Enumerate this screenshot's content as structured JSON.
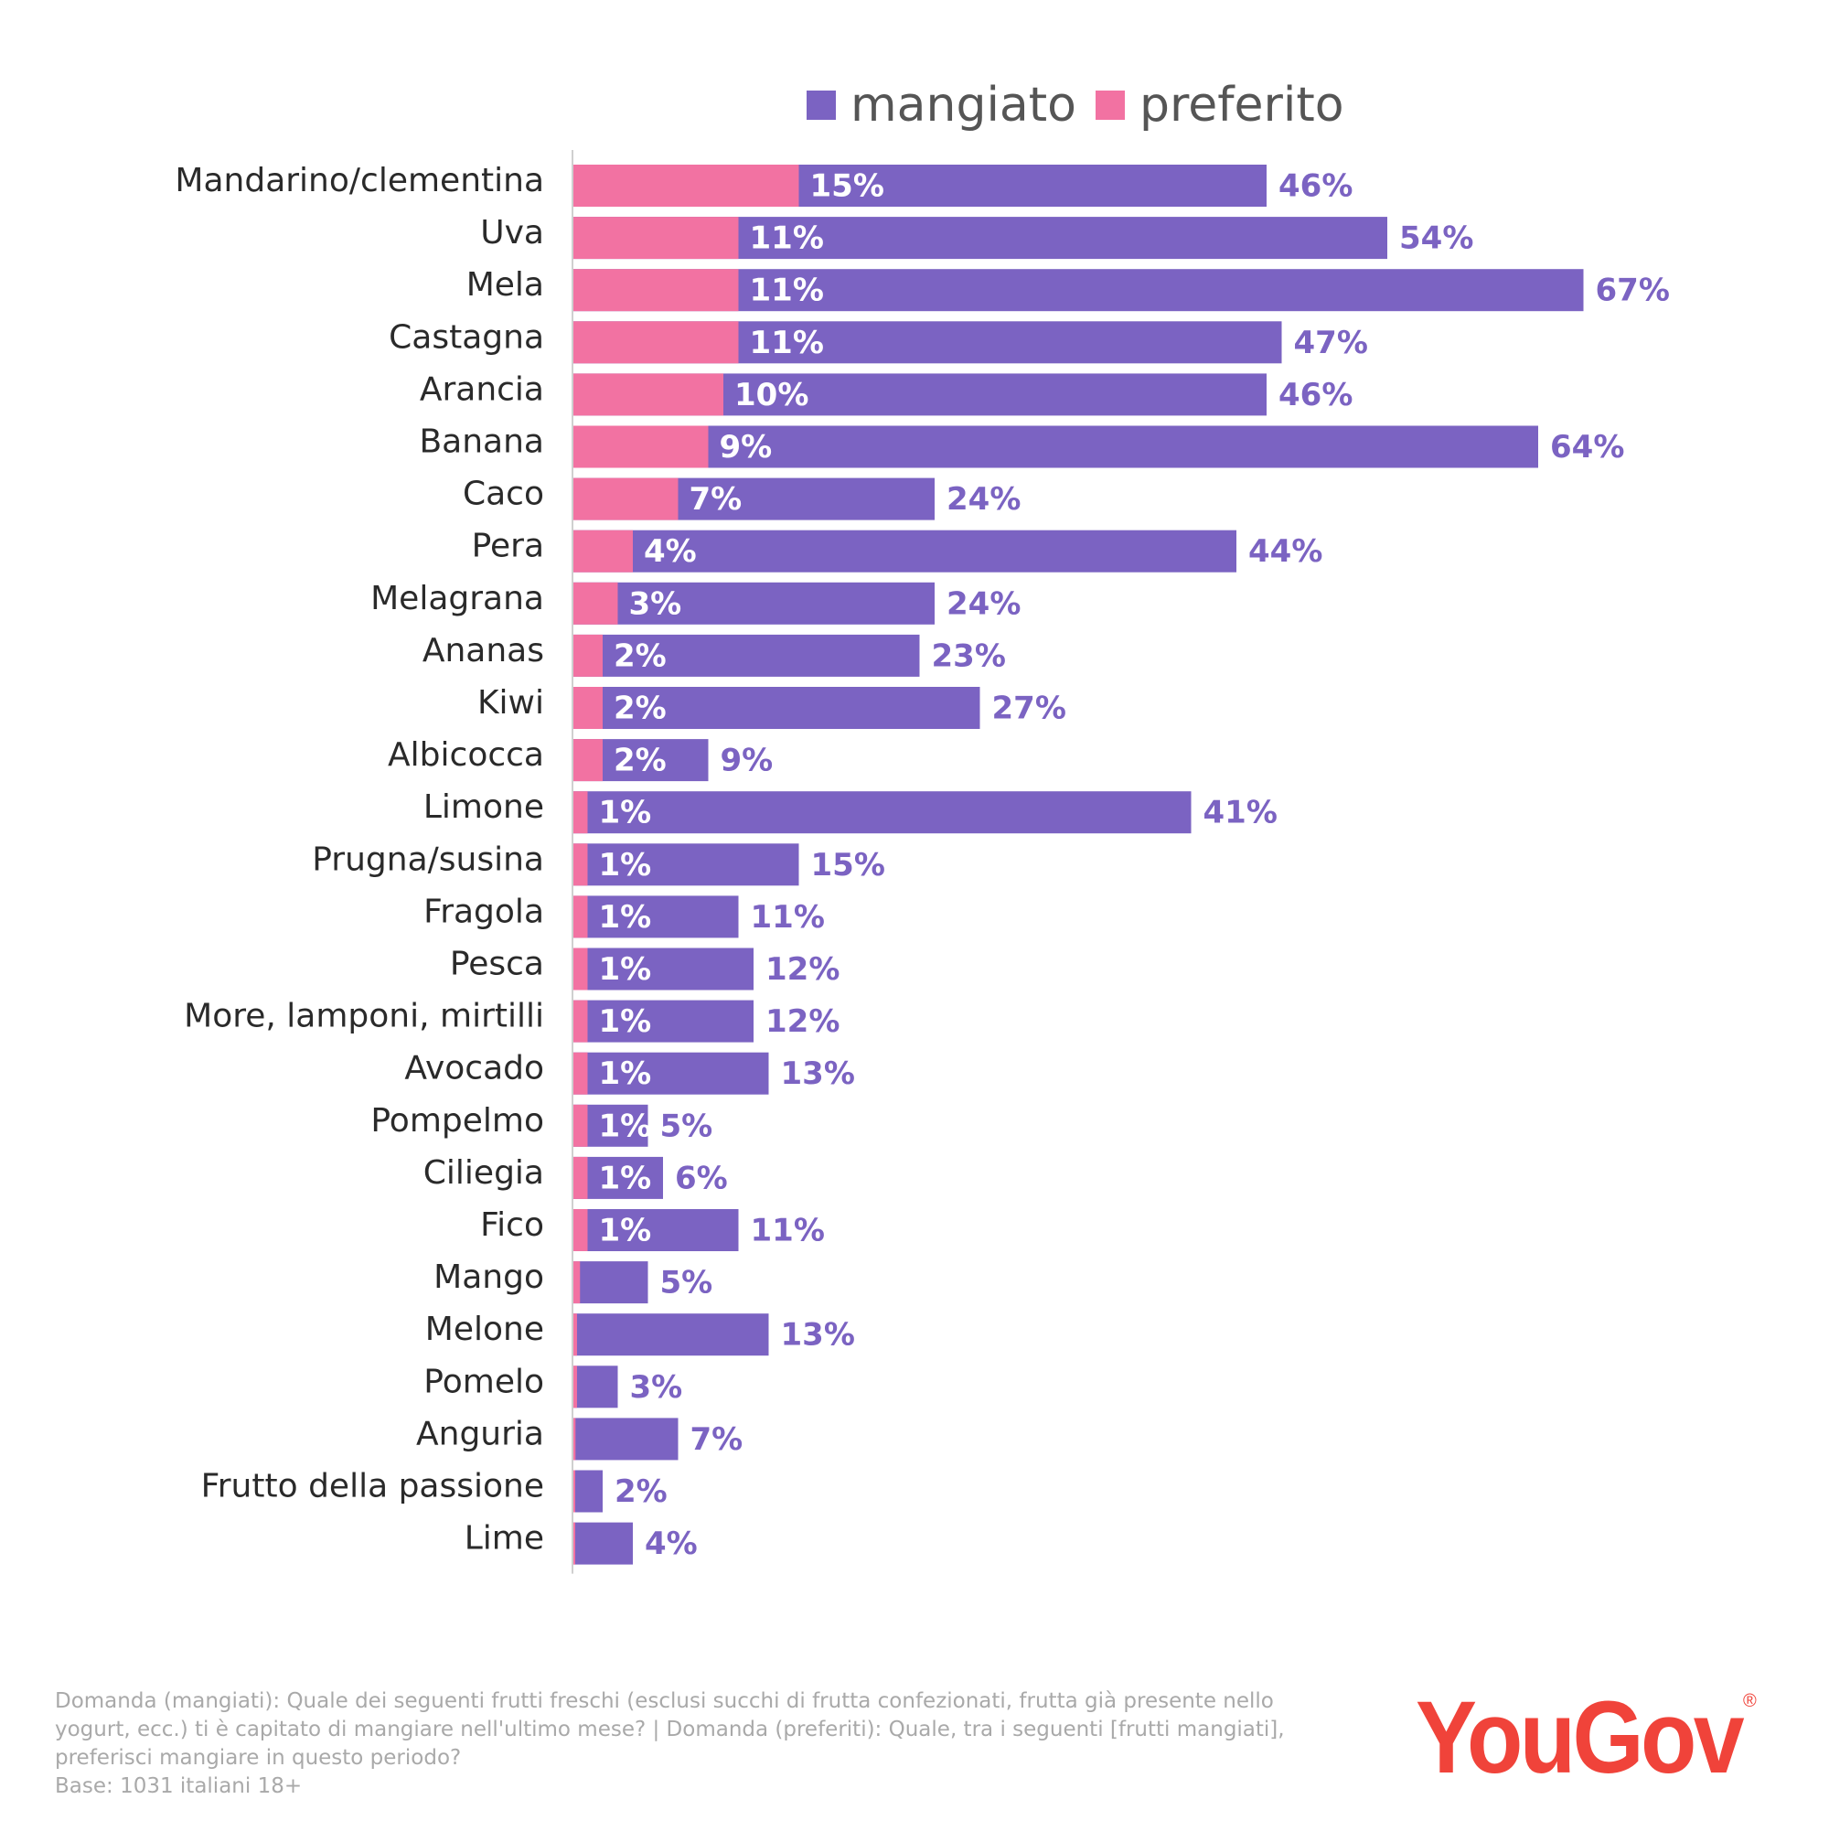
{
  "legend": {
    "eaten_label": "mangiato",
    "favorite_label": "preferito"
  },
  "colors": {
    "eaten": "#7B63C2",
    "favorite": "#F272A2",
    "axis": "#cfcfcf",
    "category_text": "#2a2a2a",
    "logo": "#F0433A"
  },
  "chart_data": {
    "type": "bar",
    "orientation": "horizontal",
    "stacking": "overlay",
    "categories": [
      "Mandarino/clementina",
      "Uva",
      "Mela",
      "Castagna",
      "Arancia",
      "Banana",
      "Caco",
      "Pera",
      "Melagrana",
      "Ananas",
      "Kiwi",
      "Albicocca",
      "Limone",
      "Prugna/susina",
      "Fragola",
      "Pesca",
      "More, lamponi, mirtilli",
      "Avocado",
      "Pompelmo",
      "Ciliegia",
      "Fico",
      "Mango",
      "Melone",
      "Pomelo",
      "Anguria",
      "Frutto della passione",
      "Lime"
    ],
    "series": [
      {
        "name": "mangiato",
        "values": [
          46,
          54,
          67,
          47,
          46,
          64,
          24,
          44,
          24,
          23,
          27,
          9,
          41,
          15,
          11,
          12,
          12,
          13,
          5,
          6,
          11,
          5,
          13,
          3,
          7,
          2,
          4
        ],
        "labels": [
          "46%",
          "54%",
          "67%",
          "47%",
          "46%",
          "64%",
          "24%",
          "44%",
          "24%",
          "23%",
          "27%",
          "9%",
          "41%",
          "15%",
          "11%",
          "12%",
          "12%",
          "13%",
          "5%",
          "6%",
          "11%",
          "5%",
          "13%",
          "3%",
          "7%",
          "2%",
          "4%"
        ]
      },
      {
        "name": "preferito",
        "values": [
          15,
          11,
          11,
          11,
          10,
          9,
          7,
          4,
          3,
          2,
          2,
          2,
          1,
          1,
          1,
          1,
          1,
          1,
          1,
          1,
          1,
          0.5,
          0.3,
          0.3,
          0.2,
          0.1,
          0.1
        ],
        "labels": [
          "15%",
          "11%",
          "11%",
          "11%",
          "10%",
          "9%",
          "7%",
          "4%",
          "3%",
          "2%",
          "2%",
          "2%",
          "1%",
          "1%",
          "1%",
          "1%",
          "1%",
          "1%",
          "1%",
          "1%",
          "1%",
          "",
          "",
          "",
          "",
          "",
          ""
        ]
      }
    ],
    "xlim": [
      0,
      70
    ]
  },
  "footnote": {
    "line1": "Domanda (mangiati): Quale dei seguenti frutti freschi (esclusi succhi di frutta confezionati, frutta già presente nello",
    "line2": "yogurt, ecc.) ti è capitato di mangiare nell'ultimo mese? | Domanda (preferiti): Quale, tra i seguenti [frutti mangiati],",
    "line3": "preferisci mangiare in questo periodo?",
    "line4": "Base: 1031 italiani 18+"
  },
  "logo": {
    "text": "YouGov",
    "mark": "®"
  }
}
